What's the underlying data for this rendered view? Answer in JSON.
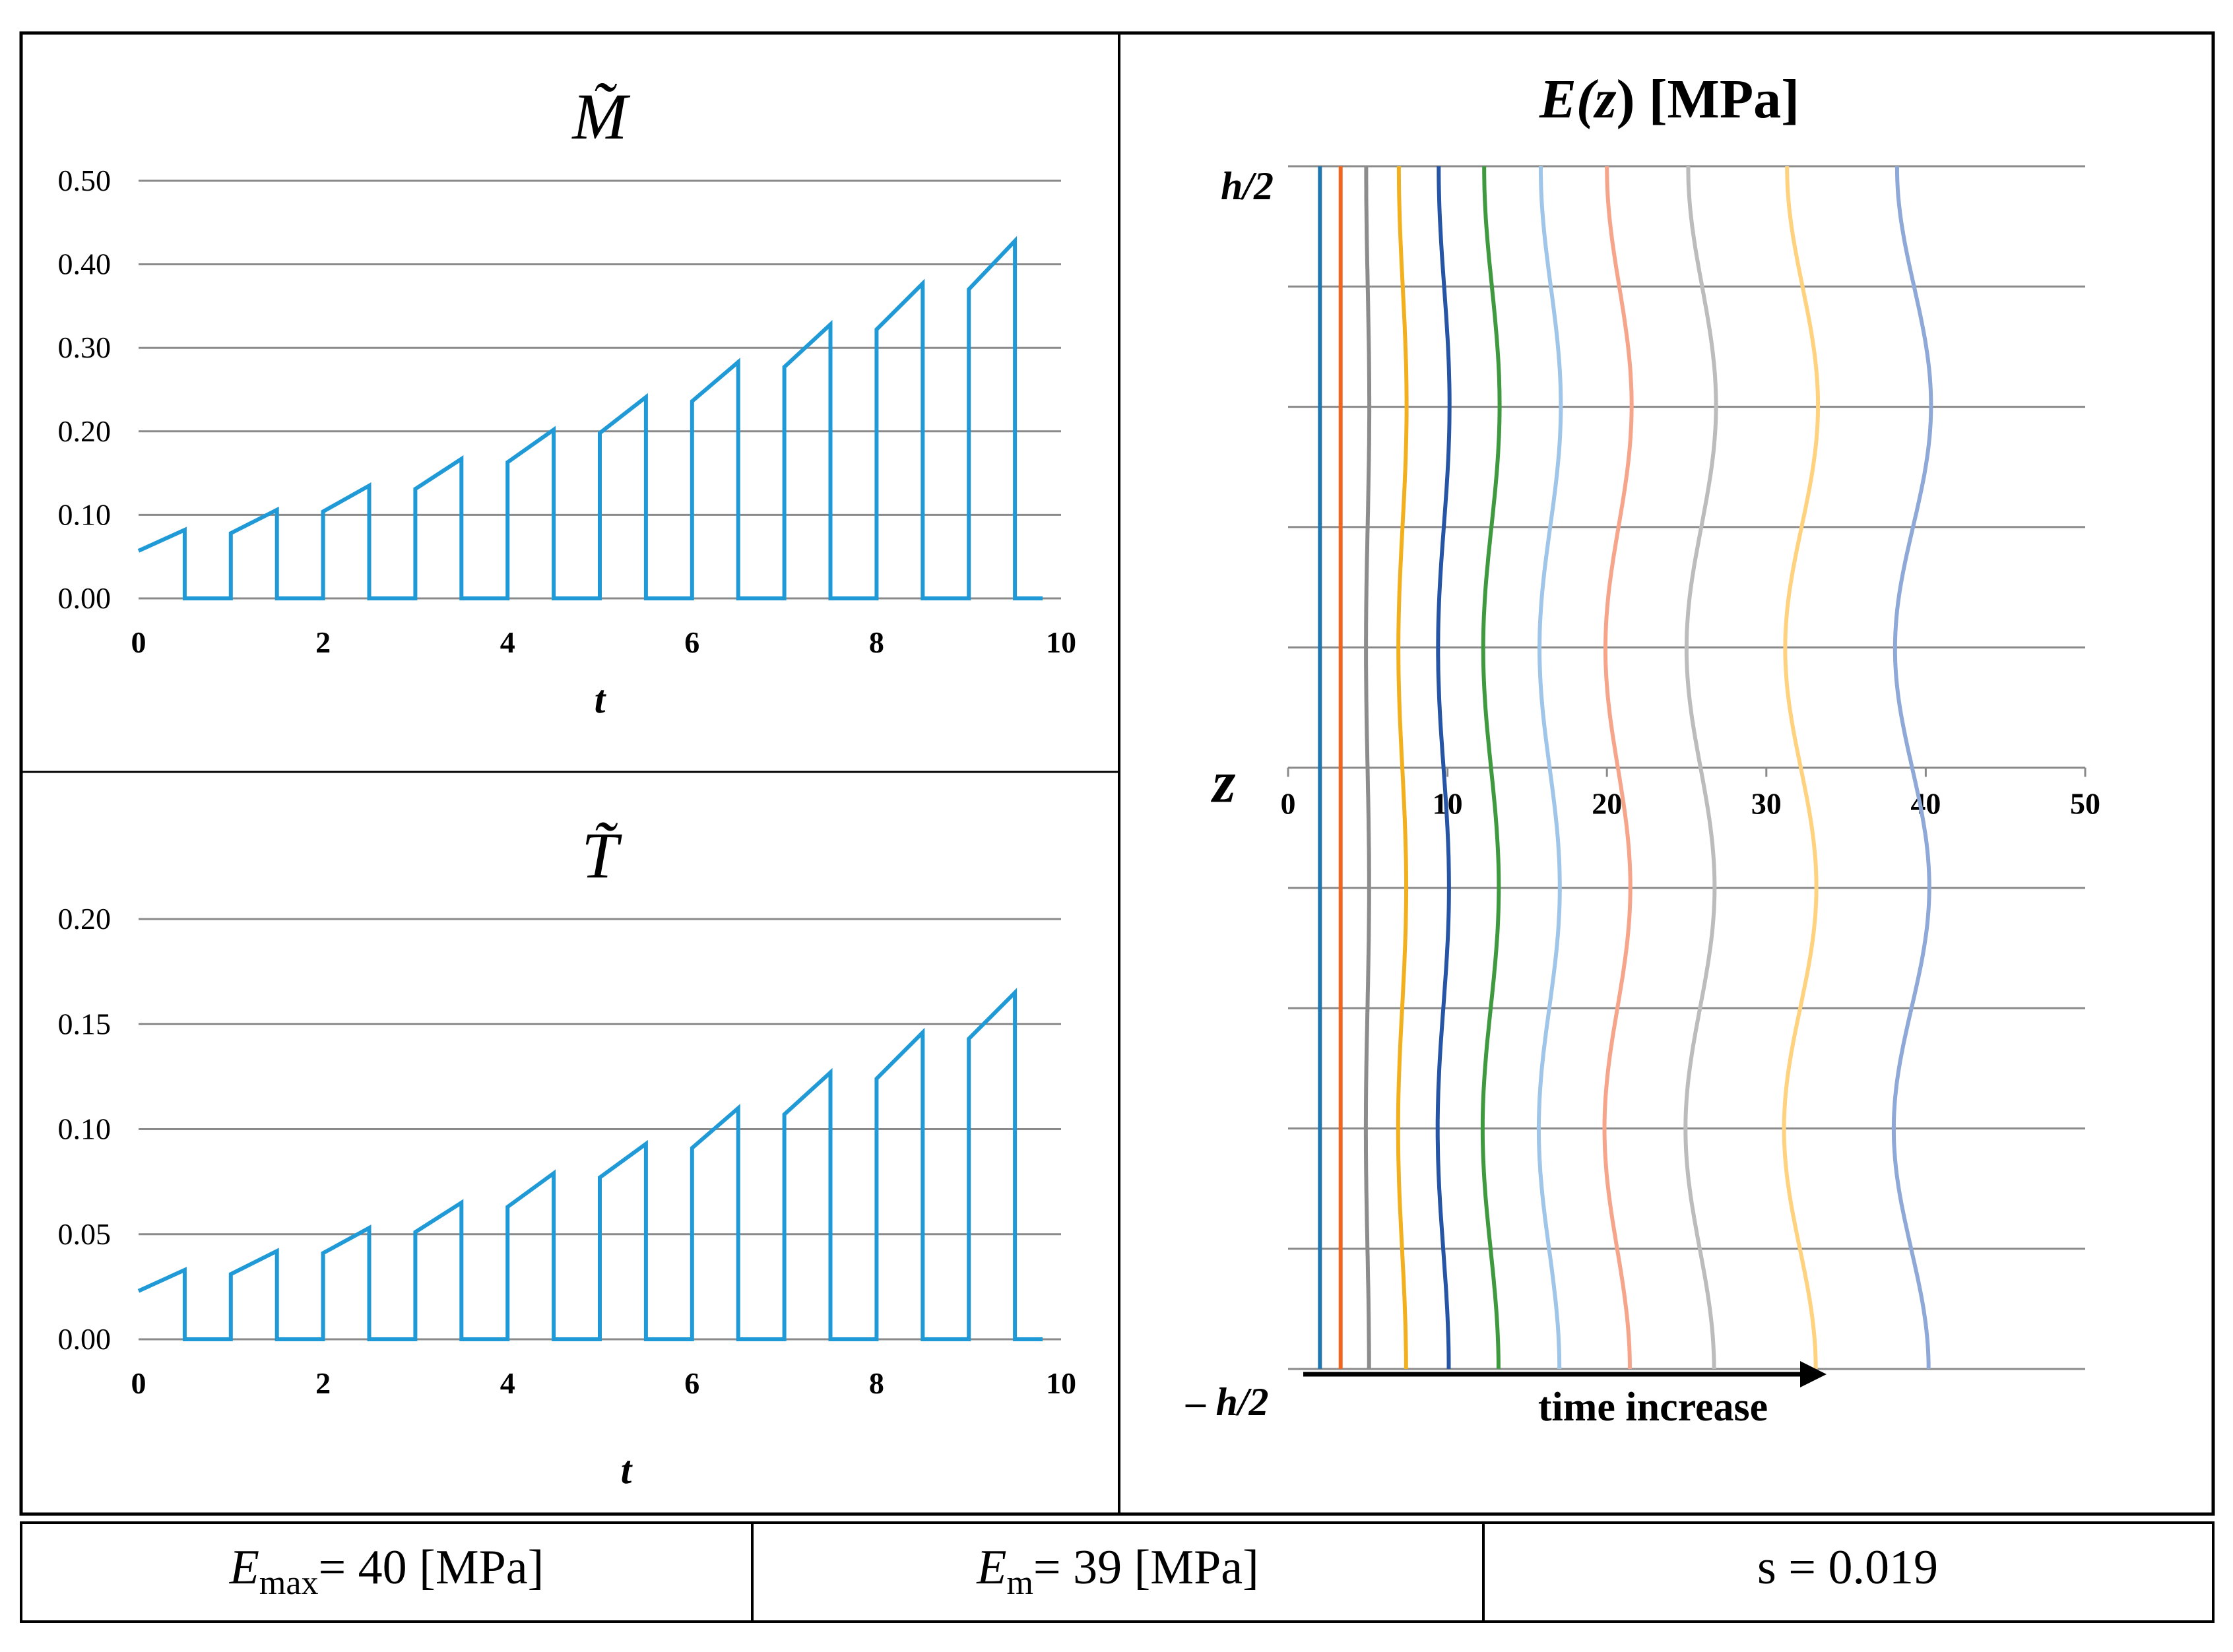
{
  "chart_data": [
    {
      "type": "line",
      "title": "M̃",
      "xlabel": "t",
      "ylabel": "",
      "xlim": [
        0,
        10
      ],
      "ylim": [
        0,
        0.5
      ],
      "x_ticks": [
        "0",
        "2",
        "4",
        "6",
        "8",
        "10"
      ],
      "y_ticks": [
        "0.00",
        "0.10",
        "0.20",
        "0.30",
        "0.40",
        "0.50"
      ],
      "grid": "horizontal",
      "color": "#1f9ad6",
      "series": [
        {
          "segments": [
            {
              "t0": 0.0,
              "t1": 0.5,
              "y0": 0.057,
              "y1": 0.082
            },
            {
              "t0": 1.0,
              "t1": 1.5,
              "y0": 0.078,
              "y1": 0.106
            },
            {
              "t0": 2.0,
              "t1": 2.5,
              "y0": 0.104,
              "y1": 0.135
            },
            {
              "t0": 3.0,
              "t1": 3.5,
              "y0": 0.131,
              "y1": 0.167
            },
            {
              "t0": 4.0,
              "t1": 4.5,
              "y0": 0.163,
              "y1": 0.202
            },
            {
              "t0": 5.0,
              "t1": 5.5,
              "y0": 0.198,
              "y1": 0.241
            },
            {
              "t0": 6.0,
              "t1": 6.5,
              "y0": 0.236,
              "y1": 0.283
            },
            {
              "t0": 7.0,
              "t1": 7.5,
              "y0": 0.277,
              "y1": 0.328
            },
            {
              "t0": 8.0,
              "t1": 8.5,
              "y0": 0.322,
              "y1": 0.377
            },
            {
              "t0": 9.0,
              "t1": 9.5,
              "y0": 0.37,
              "y1": 0.428
            }
          ],
          "end_t": 9.8
        }
      ]
    },
    {
      "type": "line",
      "title": "T̃",
      "xlabel": "t",
      "ylabel": "",
      "xlim": [
        0,
        10
      ],
      "ylim": [
        0,
        0.2
      ],
      "x_ticks": [
        "0",
        "2",
        "4",
        "6",
        "8",
        "10"
      ],
      "y_ticks": [
        "0.00",
        "0.05",
        "0.10",
        "0.15",
        "0.20"
      ],
      "grid": "horizontal",
      "color": "#1f9ad6",
      "series": [
        {
          "segments": [
            {
              "t0": 0.0,
              "t1": 0.5,
              "y0": 0.023,
              "y1": 0.033
            },
            {
              "t0": 1.0,
              "t1": 1.5,
              "y0": 0.031,
              "y1": 0.042
            },
            {
              "t0": 2.0,
              "t1": 2.5,
              "y0": 0.041,
              "y1": 0.053
            },
            {
              "t0": 3.0,
              "t1": 3.5,
              "y0": 0.051,
              "y1": 0.065
            },
            {
              "t0": 4.0,
              "t1": 4.5,
              "y0": 0.063,
              "y1": 0.079
            },
            {
              "t0": 5.0,
              "t1": 5.5,
              "y0": 0.077,
              "y1": 0.093
            },
            {
              "t0": 6.0,
              "t1": 6.5,
              "y0": 0.091,
              "y1": 0.11
            },
            {
              "t0": 7.0,
              "t1": 7.5,
              "y0": 0.107,
              "y1": 0.127
            },
            {
              "t0": 8.0,
              "t1": 8.5,
              "y0": 0.124,
              "y1": 0.146
            },
            {
              "t0": 9.0,
              "t1": 9.5,
              "y0": 0.143,
              "y1": 0.165
            }
          ],
          "end_t": 9.8
        }
      ]
    },
    {
      "type": "line",
      "title_parts": {
        "pre": "E(",
        "var": "z",
        "post": ") [MPa]"
      },
      "ylabel": "z",
      "xlim": [
        0,
        50
      ],
      "x_ticks": [
        "0",
        "10",
        "20",
        "30",
        "40",
        "50"
      ],
      "z_top_label": "h/2",
      "z_bottom_label": "– h/2",
      "grid": "horizontal",
      "annotation": "time increase",
      "profiles": [
        {
          "base": 2.0,
          "amp": 0.0,
          "color": "#1f77b4"
        },
        {
          "base": 3.3,
          "amp": 0.0,
          "color": "#f0661f"
        },
        {
          "base": 5.0,
          "amp": 0.1,
          "color": "#8c8c8c"
        },
        {
          "base": 7.2,
          "amp": 0.25,
          "color": "#f2b01e"
        },
        {
          "base": 9.8,
          "amp": 0.35,
          "color": "#2755a5"
        },
        {
          "base": 12.8,
          "amp": 0.5,
          "color": "#3f9a3f"
        },
        {
          "base": 16.5,
          "amp": 0.65,
          "color": "#9fc5e8"
        },
        {
          "base": 20.8,
          "amp": 0.8,
          "color": "#f7a58a"
        },
        {
          "base": 26.0,
          "amp": 0.9,
          "color": "#bcbcbc"
        },
        {
          "base": 32.3,
          "amp": 1.0,
          "color": "#ffd27f"
        },
        {
          "base": 39.3,
          "amp": 1.1,
          "color": "#8ea8d8"
        }
      ]
    }
  ],
  "footer": {
    "emax_sym": "E",
    "emax_sub": "max",
    "emax_val": "= 40 [MPa]",
    "em_sym": "E",
    "em_sub": "m",
    "em_val": "= 39 [MPa]",
    "s": "s = 0.019"
  }
}
